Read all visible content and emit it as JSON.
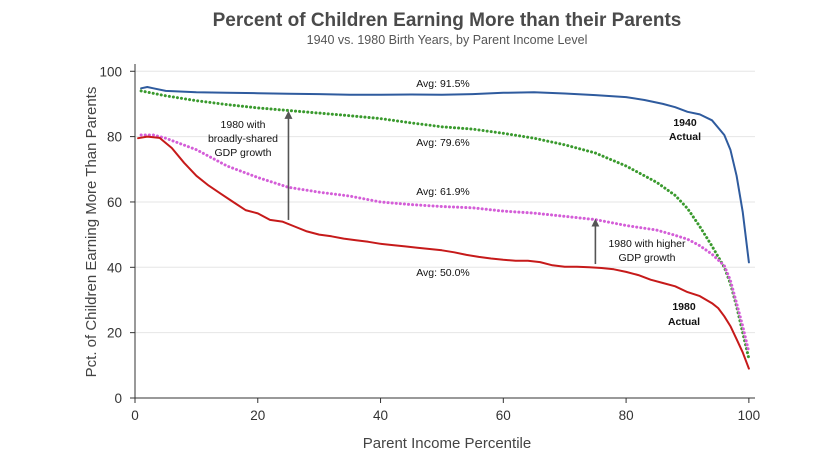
{
  "chart_data": {
    "type": "line",
    "title": "Percent of Children Earning More than their Parents",
    "subtitle": "1940 vs. 1980 Birth Years, by Parent Income Level",
    "xlabel": "Parent Income Percentile",
    "ylabel": "Pct. of Children Earning More Than Parents",
    "xlim": [
      0,
      101
    ],
    "ylim": [
      0,
      101
    ],
    "xticks": [
      0,
      20,
      40,
      60,
      80,
      100
    ],
    "yticks": [
      0,
      20,
      40,
      60,
      80,
      100
    ],
    "colors": {
      "s1940": "#2f5b9e",
      "s1980": "#c61a1a",
      "shared": "#3a9a2e",
      "higher": "#d45ed8",
      "arrow": "#555555",
      "grid": "#e6e6e6",
      "axis": "#333333"
    },
    "series": [
      {
        "name": "1940 Actual",
        "style": "solid",
        "x": [
          1,
          2,
          3,
          5,
          10,
          15,
          20,
          25,
          30,
          35,
          40,
          45,
          50,
          55,
          60,
          65,
          70,
          75,
          80,
          83,
          86,
          88,
          90,
          92,
          94,
          96,
          97,
          98,
          99,
          100
        ],
        "values": [
          94.8,
          95.2,
          94.8,
          94.0,
          93.6,
          93.4,
          93.3,
          93.1,
          93.0,
          92.8,
          92.8,
          92.9,
          92.8,
          93.0,
          93.4,
          93.6,
          93.2,
          92.7,
          92.1,
          91.2,
          90.0,
          89.0,
          87.6,
          86.8,
          85.0,
          80.5,
          76.0,
          68.0,
          57.0,
          41.5
        ]
      },
      {
        "name": "1980 with broadly-shared GDP growth",
        "style": "dotted",
        "x": [
          1,
          5,
          10,
          15,
          20,
          25,
          30,
          35,
          40,
          45,
          50,
          55,
          60,
          65,
          70,
          75,
          80,
          85,
          88,
          90,
          92,
          94,
          96,
          97,
          98,
          99,
          100
        ],
        "values": [
          94.0,
          92.5,
          91.0,
          89.8,
          88.8,
          88.0,
          87.2,
          86.4,
          85.5,
          84.2,
          83.0,
          82.3,
          81.0,
          79.5,
          77.5,
          75.0,
          71.0,
          66.0,
          62.0,
          58.0,
          52.5,
          46.5,
          40.0,
          35.0,
          28.0,
          20.0,
          12.0
        ]
      },
      {
        "name": "1980 with higher GDP growth",
        "style": "dotted",
        "x": [
          1,
          3,
          5,
          10,
          15,
          20,
          25,
          30,
          35,
          40,
          45,
          50,
          55,
          60,
          65,
          70,
          75,
          80,
          85,
          88,
          90,
          92,
          94,
          96,
          97,
          98,
          99,
          100
        ],
        "values": [
          80.5,
          80.5,
          79.5,
          76.0,
          71.0,
          67.5,
          64.5,
          63.0,
          61.8,
          60.0,
          59.2,
          58.6,
          58.2,
          57.2,
          56.6,
          55.6,
          54.6,
          52.8,
          51.4,
          49.8,
          48.6,
          46.6,
          44.0,
          40.5,
          36.0,
          29.0,
          22.0,
          14.0
        ]
      },
      {
        "name": "1980 Actual",
        "style": "solid",
        "x": [
          0.5,
          2,
          4,
          6,
          8,
          10,
          12,
          14,
          16,
          18,
          20,
          22,
          24,
          26,
          28,
          30,
          32,
          34,
          36,
          38,
          40,
          42,
          44,
          46,
          48,
          50,
          52,
          54,
          56,
          58,
          60,
          62,
          64,
          66,
          68,
          70,
          72,
          74,
          76,
          78,
          80,
          82,
          84,
          86,
          88,
          90,
          92,
          94,
          95,
          96,
          97,
          98,
          99,
          100
        ],
        "values": [
          79.5,
          80.0,
          79.6,
          76.5,
          72.0,
          68.0,
          65.0,
          62.5,
          60.0,
          57.5,
          56.5,
          54.5,
          54.0,
          52.5,
          51.0,
          50.0,
          49.5,
          48.8,
          48.3,
          47.8,
          47.2,
          46.8,
          46.4,
          46.0,
          45.6,
          45.2,
          44.6,
          43.8,
          43.2,
          42.7,
          42.3,
          42.0,
          42.0,
          41.6,
          40.6,
          40.2,
          40.2,
          40.0,
          39.8,
          39.4,
          38.6,
          37.6,
          36.2,
          35.2,
          34.2,
          32.4,
          31.2,
          29.0,
          27.5,
          25.0,
          22.0,
          18.0,
          14.0,
          9.0
        ]
      }
    ],
    "annotations": {
      "avg_1940": "Avg: 91.5%",
      "avg_shared": "Avg: 79.6%",
      "avg_higher": "Avg: 61.9%",
      "avg_1980": "Avg: 50.0%",
      "label_1940_line1": "1940",
      "label_1940_line2": "Actual",
      "label_1980_line1": "1980",
      "label_1980_line2": "Actual",
      "shared_line1": "1980 with",
      "shared_line2": "broadly-shared",
      "shared_line3": "GDP growth",
      "higher_line1": "1980 with higher",
      "higher_line2": "GDP growth"
    },
    "arrows": [
      {
        "x": 25,
        "y_from": 54.5,
        "y_to": 88.5
      },
      {
        "x": 75,
        "y_from": 41,
        "y_to": 55.5
      }
    ]
  }
}
